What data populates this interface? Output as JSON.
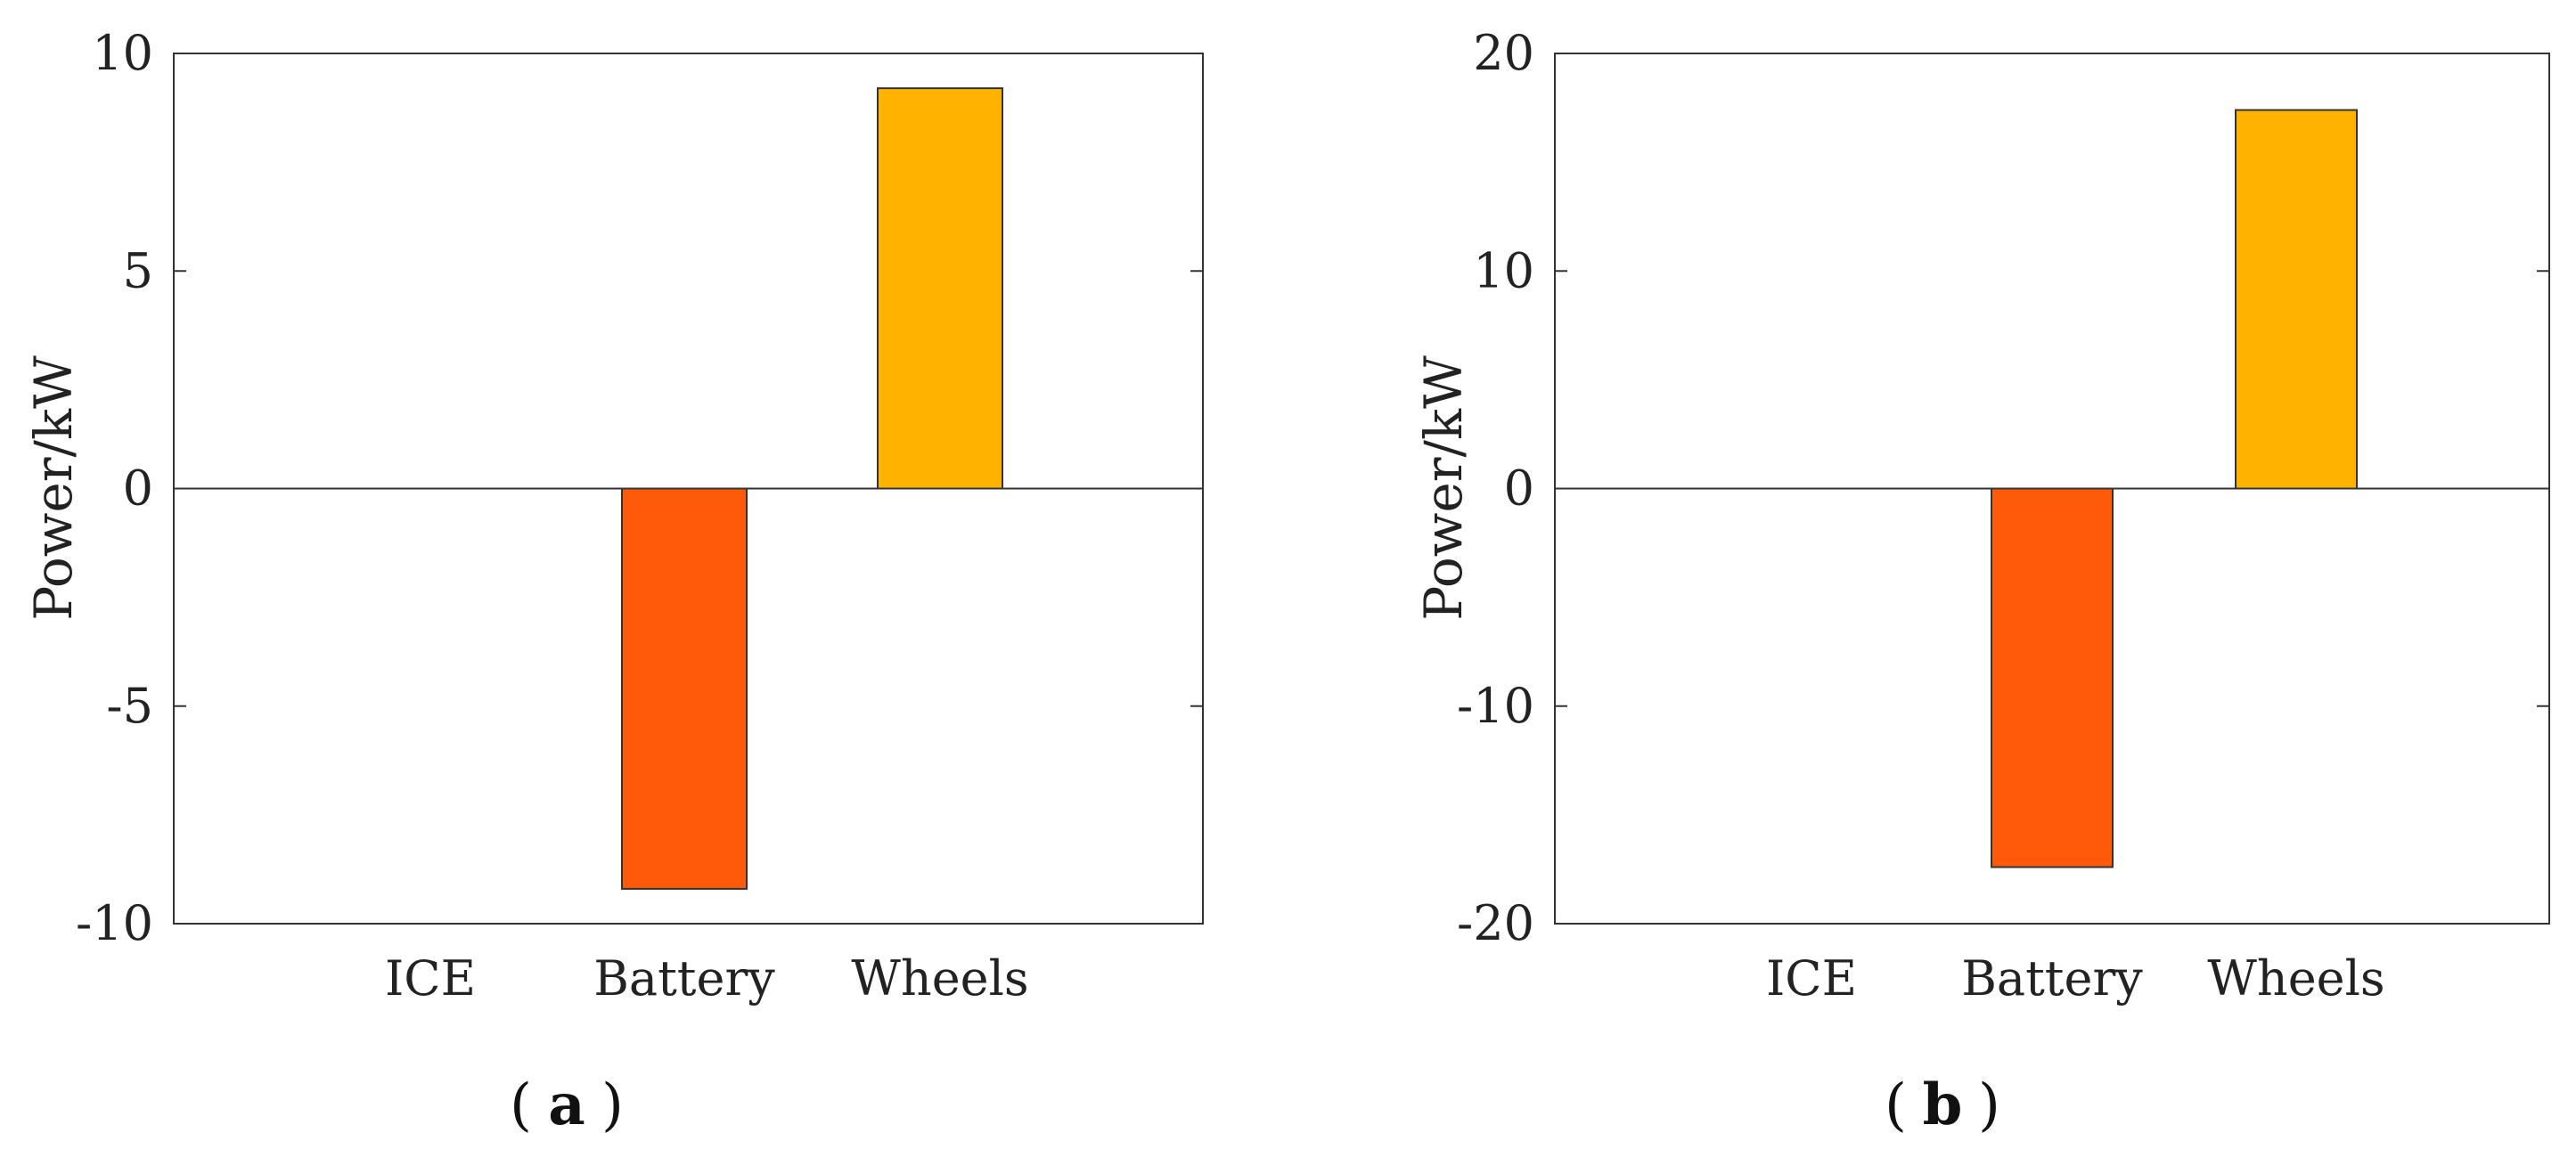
{
  "chart_data": [
    {
      "type": "bar",
      "panel_label": "a",
      "categories": [
        "ICE",
        "Battery",
        "Wheels"
      ],
      "values": [
        0,
        -9.2,
        9.2
      ],
      "colors": [
        "#ff5a0a",
        "#ff5a0a",
        "#ffb300"
      ],
      "ylabel": "Power/kW",
      "xlabel": "",
      "ylim": [
        -10,
        10
      ],
      "yticks": [
        10,
        5,
        0,
        -5,
        -10
      ],
      "ytick_labels": [
        "10",
        "5",
        "0",
        "-5",
        "-10"
      ]
    },
    {
      "type": "bar",
      "panel_label": "b",
      "categories": [
        "ICE",
        "Battery",
        "Wheels"
      ],
      "values": [
        0,
        -17.4,
        17.4
      ],
      "colors": [
        "#ff5a0a",
        "#ff5a0a",
        "#ffb300"
      ],
      "ylabel": "Power/kW",
      "xlabel": "",
      "ylim": [
        -20,
        20
      ],
      "yticks": [
        20,
        10,
        0,
        -10,
        -20
      ],
      "ytick_labels": [
        "20",
        "10",
        "0",
        "-10",
        "-20"
      ]
    }
  ]
}
